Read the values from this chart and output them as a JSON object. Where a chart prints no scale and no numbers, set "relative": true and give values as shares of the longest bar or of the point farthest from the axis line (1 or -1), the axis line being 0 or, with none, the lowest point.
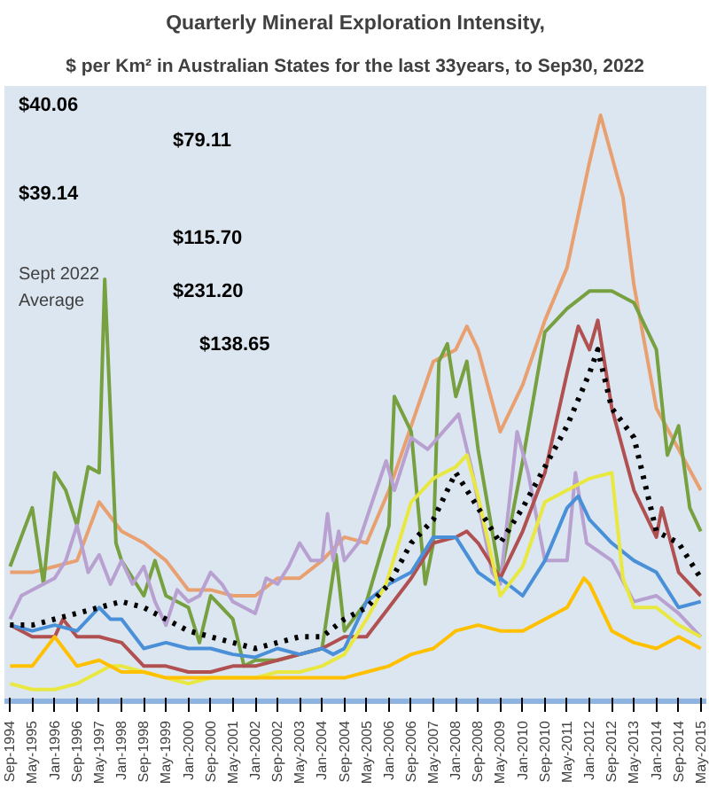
{
  "chart_data": {
    "type": "line",
    "relative": true,
    "title": "Quarterly Mineral Exploration Intensity,",
    "subtitle": "$ per Km² in Australian States for the last 33years, to Sep30, 2022",
    "annotations": [
      "$40.06",
      "$79.11",
      "$39.14",
      "$115.70",
      "$231.20",
      "$138.65",
      "Sept 2022",
      "Average"
    ],
    "xlim": [
      "1994-07",
      "2015-07"
    ],
    "xticks": [
      {
        "value": "1994-09",
        "label": "Sep-1994"
      },
      {
        "value": "1995-05",
        "label": "May-1995"
      },
      {
        "value": "1996-01",
        "label": "Jan-1996"
      },
      {
        "value": "1996-09",
        "label": "Sep-1996"
      },
      {
        "value": "1997-05",
        "label": "May-1997"
      },
      {
        "value": "1998-01",
        "label": "Jan-1998"
      },
      {
        "value": "1998-09",
        "label": "Sep-1998"
      },
      {
        "value": "1999-05",
        "label": "May-1999"
      },
      {
        "value": "2000-01",
        "label": "Jan-2000"
      },
      {
        "value": "2000-09",
        "label": "Sep-2000"
      },
      {
        "value": "2001-05",
        "label": "May-2001"
      },
      {
        "value": "2002-01",
        "label": "Jan-2002"
      },
      {
        "value": "2002-09",
        "label": "Sep-2002"
      },
      {
        "value": "2003-05",
        "label": "May-2003"
      },
      {
        "value": "2004-01",
        "label": "Jan-2004"
      },
      {
        "value": "2004-09",
        "label": "Sep-2004"
      },
      {
        "value": "2005-05",
        "label": "May-2005"
      },
      {
        "value": "2006-01",
        "label": "Jan-2006"
      },
      {
        "value": "2006-09",
        "label": "Sep-2006"
      },
      {
        "value": "2007-05",
        "label": "May-2007"
      },
      {
        "value": "2008-01",
        "label": "Jan-2008"
      },
      {
        "value": "2008-09",
        "label": "Sep-2008"
      },
      {
        "value": "2009-05",
        "label": "May-2009"
      },
      {
        "value": "2010-01",
        "label": "Jan-2010"
      },
      {
        "value": "2010-09",
        "label": "Sep-2010"
      },
      {
        "value": "2011-05",
        "label": "May-2011"
      },
      {
        "value": "2012-01",
        "label": "Jan-2012"
      },
      {
        "value": "2012-09",
        "label": "Sep-2012"
      },
      {
        "value": "2013-05",
        "label": "May-2013"
      },
      {
        "value": "2014-01",
        "label": "Jan-2014"
      },
      {
        "value": "2014-09",
        "label": "Sep-2014"
      },
      {
        "value": "2015-05",
        "label": "May-2015"
      }
    ],
    "series": [
      {
        "color": "#e8a070",
        "x": [
          "1994-09",
          "1995-05",
          "1996-01",
          "1996-09",
          "1997-05",
          "1998-01",
          "1998-09",
          "1999-05",
          "2000-01",
          "2000-09",
          "2001-05",
          "2002-01",
          "2002-09",
          "2003-05",
          "2004-01",
          "2004-09",
          "2005-05",
          "2006-01",
          "2006-09",
          "2007-05",
          "2008-01",
          "2008-05",
          "2008-09",
          "2009-05",
          "2010-01",
          "2010-09",
          "2011-05",
          "2012-01",
          "2012-05",
          "2012-09",
          "2013-01",
          "2013-05",
          "2014-01",
          "2014-09",
          "2015-05"
        ],
        "values": [
          0.22,
          0.22,
          0.23,
          0.24,
          0.34,
          0.29,
          0.27,
          0.24,
          0.19,
          0.19,
          0.18,
          0.18,
          0.21,
          0.21,
          0.24,
          0.28,
          0.27,
          0.36,
          0.47,
          0.58,
          0.6,
          0.64,
          0.6,
          0.46,
          0.54,
          0.65,
          0.74,
          0.92,
          1.0,
          0.93,
          0.86,
          0.71,
          0.5,
          0.43,
          0.36
        ]
      },
      {
        "color": "#77a040",
        "x": [
          "1994-09",
          "1995-05",
          "1995-09",
          "1996-01",
          "1996-05",
          "1996-09",
          "1997-01",
          "1997-05",
          "1997-07",
          "1997-11",
          "1998-01",
          "1998-09",
          "1999-01",
          "1999-05",
          "2000-01",
          "2000-05",
          "2000-09",
          "2001-01",
          "2001-05",
          "2001-09",
          "2002-01",
          "2002-09",
          "2003-05",
          "2004-01",
          "2004-06",
          "2004-09",
          "2005-05",
          "2006-01",
          "2006-03",
          "2006-09",
          "2007-02",
          "2007-05",
          "2007-07",
          "2007-10",
          "2008-01",
          "2008-05",
          "2008-09",
          "2009-05",
          "2010-01",
          "2010-09",
          "2011-05",
          "2012-01",
          "2012-09",
          "2013-05",
          "2014-01",
          "2014-05",
          "2014-09",
          "2015-01",
          "2015-05"
        ],
        "values": [
          0.23,
          0.33,
          0.2,
          0.39,
          0.36,
          0.3,
          0.4,
          0.39,
          0.72,
          0.27,
          0.24,
          0.18,
          0.24,
          0.18,
          0.16,
          0.1,
          0.18,
          0.16,
          0.14,
          0.06,
          0.07,
          0.07,
          0.08,
          0.09,
          0.25,
          0.12,
          0.17,
          0.3,
          0.52,
          0.46,
          0.2,
          0.27,
          0.58,
          0.61,
          0.52,
          0.58,
          0.43,
          0.21,
          0.41,
          0.63,
          0.67,
          0.7,
          0.7,
          0.68,
          0.6,
          0.42,
          0.47,
          0.33,
          0.29
        ]
      },
      {
        "color": "#b8a0d0",
        "x": [
          "1994-09",
          "1995-01",
          "1995-09",
          "1996-01",
          "1996-05",
          "1996-09",
          "1997-01",
          "1997-05",
          "1997-09",
          "1998-01",
          "1998-05",
          "1998-09",
          "1999-01",
          "1999-05",
          "1999-09",
          "2000-01",
          "2000-05",
          "2000-09",
          "2001-01",
          "2001-05",
          "2001-09",
          "2002-01",
          "2002-05",
          "2002-09",
          "2003-01",
          "2003-05",
          "2003-09",
          "2004-01",
          "2004-03",
          "2004-05",
          "2004-07",
          "2004-09",
          "2005-02",
          "2005-07",
          "2005-12",
          "2006-03",
          "2006-09",
          "2007-03",
          "2008-02",
          "2008-07",
          "2009-02",
          "2009-05",
          "2009-11",
          "2010-03",
          "2010-09",
          "2011-05",
          "2011-08",
          "2011-12",
          "2012-09",
          "2013-05",
          "2014-01",
          "2014-09",
          "2015-05"
        ],
        "values": [
          0.14,
          0.18,
          0.2,
          0.21,
          0.24,
          0.3,
          0.22,
          0.25,
          0.2,
          0.24,
          0.2,
          0.23,
          0.17,
          0.13,
          0.19,
          0.17,
          0.18,
          0.22,
          0.2,
          0.17,
          0.16,
          0.15,
          0.21,
          0.2,
          0.23,
          0.27,
          0.24,
          0.24,
          0.32,
          0.24,
          0.29,
          0.24,
          0.27,
          0.34,
          0.41,
          0.36,
          0.45,
          0.43,
          0.49,
          0.39,
          0.22,
          0.2,
          0.46,
          0.39,
          0.24,
          0.24,
          0.39,
          0.27,
          0.24,
          0.17,
          0.18,
          0.15,
          0.11
        ]
      },
      {
        "color": "#b05050",
        "x": [
          "1994-09",
          "1995-05",
          "1996-01",
          "1996-04",
          "1996-09",
          "1997-05",
          "1998-01",
          "1998-09",
          "1999-05",
          "2000-01",
          "2000-09",
          "2001-05",
          "2002-01",
          "2002-09",
          "2003-05",
          "2004-01",
          "2004-09",
          "2005-05",
          "2006-01",
          "2006-09",
          "2007-05",
          "2008-01",
          "2008-05",
          "2008-09",
          "2009-05",
          "2010-01",
          "2010-09",
          "2011-05",
          "2011-09",
          "2012-01",
          "2012-04",
          "2012-09",
          "2013-05",
          "2014-01",
          "2014-03",
          "2014-09",
          "2015-05"
        ],
        "values": [
          0.13,
          0.11,
          0.11,
          0.14,
          0.11,
          0.11,
          0.1,
          0.06,
          0.06,
          0.05,
          0.05,
          0.06,
          0.06,
          0.07,
          0.08,
          0.09,
          0.11,
          0.11,
          0.16,
          0.21,
          0.27,
          0.28,
          0.29,
          0.27,
          0.21,
          0.29,
          0.39,
          0.56,
          0.64,
          0.6,
          0.65,
          0.5,
          0.36,
          0.28,
          0.33,
          0.22,
          0.18
        ]
      },
      {
        "color": "#4a90d8",
        "x": [
          "1994-09",
          "1995-05",
          "1996-01",
          "1996-09",
          "1997-01",
          "1997-05",
          "1997-09",
          "1998-01",
          "1998-09",
          "1999-05",
          "2000-01",
          "2000-09",
          "2001-05",
          "2002-01",
          "2002-09",
          "2003-05",
          "2004-01",
          "2004-05",
          "2004-09",
          "2005-05",
          "2006-01",
          "2006-09",
          "2007-05",
          "2008-01",
          "2008-09",
          "2009-03",
          "2009-05",
          "2010-01",
          "2010-09",
          "2011-05",
          "2011-09",
          "2012-01",
          "2012-09",
          "2013-05",
          "2014-01",
          "2014-09",
          "2015-05"
        ],
        "values": [
          0.13,
          0.12,
          0.13,
          0.12,
          0.14,
          0.16,
          0.14,
          0.14,
          0.09,
          0.1,
          0.09,
          0.09,
          0.08,
          0.075,
          0.09,
          0.08,
          0.09,
          0.08,
          0.09,
          0.17,
          0.2,
          0.22,
          0.28,
          0.28,
          0.22,
          0.2,
          0.21,
          0.18,
          0.24,
          0.33,
          0.35,
          0.31,
          0.27,
          0.24,
          0.22,
          0.16,
          0.17
        ]
      },
      {
        "color": "#e8e840",
        "x": [
          "1994-09",
          "1995-05",
          "1996-01",
          "1996-09",
          "1997-05",
          "1997-09",
          "1998-01",
          "1998-09",
          "1999-05",
          "2000-01",
          "2000-09",
          "2001-05",
          "2002-01",
          "2002-09",
          "2003-05",
          "2004-01",
          "2004-09",
          "2005-05",
          "2005-12",
          "2006-09",
          "2007-05",
          "2008-01",
          "2008-05",
          "2008-09",
          "2009-05",
          "2010-01",
          "2010-09",
          "2011-05",
          "2012-01",
          "2012-09",
          "2013-01",
          "2013-05",
          "2014-01",
          "2014-09",
          "2015-05"
        ],
        "values": [
          0.03,
          0.02,
          0.02,
          0.03,
          0.05,
          0.06,
          0.06,
          0.05,
          0.04,
          0.03,
          0.04,
          0.04,
          0.04,
          0.05,
          0.05,
          0.06,
          0.08,
          0.14,
          0.2,
          0.34,
          0.38,
          0.4,
          0.42,
          0.35,
          0.18,
          0.23,
          0.34,
          0.36,
          0.38,
          0.39,
          0.21,
          0.16,
          0.16,
          0.13,
          0.11
        ]
      },
      {
        "color": "#ffc000",
        "x": [
          "1994-09",
          "1995-05",
          "1996-01",
          "1996-09",
          "1997-05",
          "1998-01",
          "1998-09",
          "1999-05",
          "2000-01",
          "2000-09",
          "2001-05",
          "2002-01",
          "2002-09",
          "2003-05",
          "2004-01",
          "2004-09",
          "2005-05",
          "2006-01",
          "2006-09",
          "2007-05",
          "2008-01",
          "2008-09",
          "2009-05",
          "2010-01",
          "2010-09",
          "2011-05",
          "2011-11",
          "2012-01",
          "2012-09",
          "2013-05",
          "2014-01",
          "2014-09",
          "2015-05"
        ],
        "values": [
          0.06,
          0.06,
          0.11,
          0.06,
          0.07,
          0.05,
          0.05,
          0.04,
          0.04,
          0.04,
          0.04,
          0.04,
          0.04,
          0.04,
          0.04,
          0.04,
          0.05,
          0.06,
          0.08,
          0.09,
          0.12,
          0.13,
          0.12,
          0.12,
          0.14,
          0.16,
          0.21,
          0.2,
          0.12,
          0.1,
          0.09,
          0.11,
          0.09
        ]
      },
      {
        "color": "#000000",
        "line_style": "dotted",
        "x": [
          "1994-09",
          "1995-05",
          "1996-01",
          "1996-09",
          "1997-05",
          "1998-01",
          "1998-09",
          "1999-05",
          "2000-01",
          "2000-09",
          "2001-05",
          "2002-01",
          "2002-09",
          "2003-05",
          "2004-01",
          "2004-09",
          "2005-05",
          "2006-01",
          "2006-09",
          "2007-05",
          "2008-01",
          "2008-09",
          "2009-05",
          "2010-01",
          "2010-09",
          "2011-05",
          "2012-01",
          "2012-04",
          "2012-09",
          "2013-05",
          "2014-01",
          "2014-09",
          "2015-05"
        ],
        "values": [
          0.13,
          0.13,
          0.14,
          0.15,
          0.16,
          0.17,
          0.16,
          0.14,
          0.12,
          0.11,
          0.1,
          0.09,
          0.1,
          0.11,
          0.11,
          0.14,
          0.16,
          0.2,
          0.27,
          0.31,
          0.39,
          0.33,
          0.27,
          0.33,
          0.4,
          0.47,
          0.56,
          0.6,
          0.5,
          0.45,
          0.29,
          0.27,
          0.21
        ]
      }
    ]
  }
}
